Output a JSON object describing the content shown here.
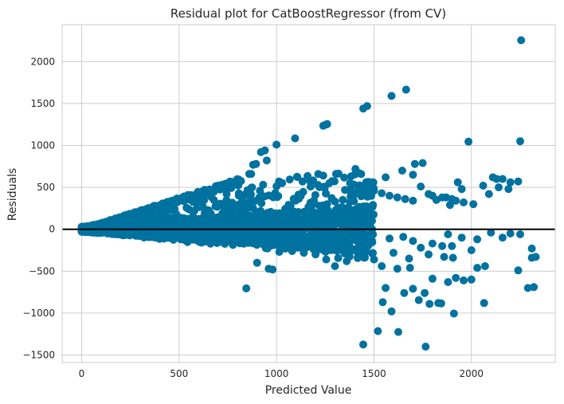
{
  "chart_data": {
    "type": "scatter",
    "title": "Residual plot for CatBoostRegressor (from CV)",
    "xlabel": "Predicted Value",
    "ylabel": "Residuals",
    "xlim": [
      -100,
      2430
    ],
    "ylim": [
      -1590,
      2440
    ],
    "x_ticks": [
      0,
      500,
      1000,
      1500,
      2000
    ],
    "x_tick_labels": [
      "0",
      "500",
      "1000",
      "1500",
      "2000"
    ],
    "y_ticks": [
      -1500,
      -1000,
      -500,
      0,
      500,
      1000,
      1500,
      2000
    ],
    "y_tick_labels": [
      "−1500",
      "−1000",
      "−500",
      "0",
      "500",
      "1000",
      "1500",
      "2000"
    ],
    "grid": true,
    "reference_line": 0,
    "colors": {
      "points": "#0072A0",
      "reference_line": "#000000",
      "grid": "#cccccc",
      "frame": "#cccccc"
    },
    "series": [
      {
        "values_xy": [
          [
            2255,
            2255
          ],
          [
            1665,
            1665
          ],
          [
            1590,
            1590
          ],
          [
            1465,
            1470
          ],
          [
            1445,
            1440
          ],
          [
            1255,
            1250
          ],
          [
            1240,
            1235
          ],
          [
            1260,
            1255
          ],
          [
            1000,
            1010
          ],
          [
            1095,
            1085
          ],
          [
            940,
            940
          ],
          [
            920,
            920
          ],
          [
            950,
            820
          ],
          [
            895,
            780
          ],
          [
            880,
            770
          ],
          [
            870,
            660
          ],
          [
            860,
            660
          ],
          [
            1985,
            1045
          ],
          [
            1710,
            780
          ],
          [
            1750,
            790
          ],
          [
            1645,
            700
          ],
          [
            1560,
            620
          ],
          [
            1700,
            650
          ],
          [
            1740,
            510
          ],
          [
            1405,
            720
          ],
          [
            1240,
            640
          ],
          [
            1175,
            510
          ],
          [
            1460,
            560
          ],
          [
            1480,
            560
          ],
          [
            2250,
            1050
          ],
          [
            2160,
            600
          ],
          [
            2240,
            570
          ],
          [
            2200,
            560
          ],
          [
            2110,
            620
          ],
          [
            2130,
            600
          ],
          [
            2060,
            520
          ],
          [
            2090,
            420
          ],
          [
            2140,
            500
          ],
          [
            2190,
            480
          ],
          [
            1930,
            560
          ],
          [
            1950,
            480
          ],
          [
            1780,
            420
          ],
          [
            1800,
            400
          ],
          [
            1850,
            380
          ],
          [
            1870,
            380
          ],
          [
            1900,
            360
          ],
          [
            1920,
            340
          ],
          [
            1960,
            320
          ],
          [
            2010,
            300
          ],
          [
            1820,
            350
          ],
          [
            1890,
            290
          ],
          [
            1440,
            500
          ],
          [
            1500,
            460
          ],
          [
            1540,
            430
          ],
          [
            1580,
            400
          ],
          [
            1620,
            380
          ],
          [
            1660,
            360
          ],
          [
            1700,
            340
          ],
          [
            1420,
            460
          ],
          [
            1380,
            390
          ],
          [
            1340,
            350
          ],
          [
            1300,
            330
          ],
          [
            1260,
            300
          ],
          [
            1220,
            280
          ],
          [
            845,
            -705
          ],
          [
            1445,
            -1375
          ],
          [
            1520,
            -1215
          ],
          [
            1625,
            -1225
          ],
          [
            1765,
            -1400
          ],
          [
            1910,
            -1005
          ],
          [
            1590,
            -980
          ],
          [
            1545,
            -870
          ],
          [
            1730,
            -845
          ],
          [
            1845,
            -885
          ],
          [
            1830,
            -880
          ],
          [
            1785,
            -890
          ],
          [
            2065,
            -880
          ],
          [
            1655,
            -760
          ],
          [
            1700,
            -710
          ],
          [
            1760,
            -760
          ],
          [
            1560,
            -700
          ],
          [
            2290,
            -700
          ],
          [
            2320,
            -690
          ],
          [
            1880,
            -630
          ],
          [
            1960,
            -610
          ],
          [
            2000,
            -600
          ],
          [
            1800,
            -590
          ],
          [
            1920,
            -580
          ],
          [
            2030,
            -460
          ],
          [
            2070,
            -440
          ],
          [
            2240,
            -490
          ],
          [
            2310,
            -340
          ],
          [
            2330,
            -330
          ],
          [
            2310,
            -230
          ],
          [
            1905,
            -340
          ],
          [
            1860,
            -330
          ],
          [
            1685,
            -460
          ],
          [
            1620,
            -470
          ],
          [
            1540,
            -440
          ],
          [
            1500,
            -360
          ],
          [
            1600,
            -280
          ],
          [
            1680,
            -350
          ],
          [
            1740,
            -220
          ],
          [
            1800,
            -170
          ],
          [
            1850,
            -200
          ],
          [
            1700,
            -140
          ],
          [
            1650,
            -90
          ],
          [
            1580,
            -110
          ],
          [
            1300,
            -440
          ],
          [
            1360,
            -380
          ],
          [
            1420,
            -300
          ],
          [
            1255,
            -360
          ],
          [
            1200,
            -300
          ],
          [
            1140,
            -280
          ],
          [
            1080,
            -260
          ],
          [
            960,
            -470
          ],
          [
            980,
            -480
          ],
          [
            900,
            -400
          ],
          [
            1420,
            -320
          ],
          [
            1460,
            -260
          ],
          [
            2160,
            -100
          ],
          [
            2250,
            -60
          ],
          [
            2030,
            -120
          ],
          [
            2000,
            -250
          ],
          [
            1950,
            -100
          ],
          [
            1900,
            -200
          ],
          [
            1780,
            -300
          ],
          [
            1880,
            -60
          ],
          [
            2100,
            -40
          ],
          [
            2200,
            -50
          ]
        ]
      }
    ]
  }
}
